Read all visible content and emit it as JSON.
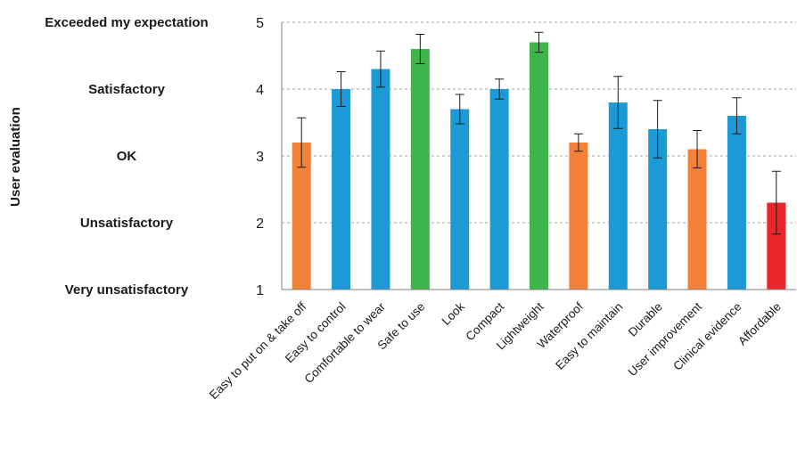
{
  "chart_data": {
    "type": "bar",
    "ylabel": "User evaluation",
    "ylim": [
      1,
      5
    ],
    "yticks": [
      1,
      2,
      3,
      4,
      5
    ],
    "ytick_texts": [
      "Very unsatisfactory",
      "Unsatisfactory",
      "OK",
      "Satisfactory",
      "Exceeded my expectation"
    ],
    "grid": true,
    "categories": [
      "Easy to put on & take off",
      "Easy to control",
      "Comfortable to wear",
      "Safe to use",
      "Look",
      "Compact",
      "Lightweight",
      "Waterproof",
      "Easy to maintain",
      "Durable",
      "User improvement",
      "Clinical evidence",
      "Affordable"
    ],
    "values": [
      3.2,
      4.0,
      4.3,
      4.6,
      3.7,
      4.0,
      4.7,
      3.2,
      3.8,
      3.4,
      3.1,
      3.6,
      2.3
    ],
    "errors": [
      0.37,
      0.26,
      0.27,
      0.22,
      0.22,
      0.15,
      0.15,
      0.13,
      0.39,
      0.43,
      0.28,
      0.27,
      0.47
    ],
    "bar_colors": [
      "#f4813a",
      "#1b9ad6",
      "#1b9ad6",
      "#3db54a",
      "#1b9ad6",
      "#1b9ad6",
      "#3db54a",
      "#f4813a",
      "#1b9ad6",
      "#1b9ad6",
      "#f4813a",
      "#1b9ad6",
      "#e8262b"
    ]
  }
}
